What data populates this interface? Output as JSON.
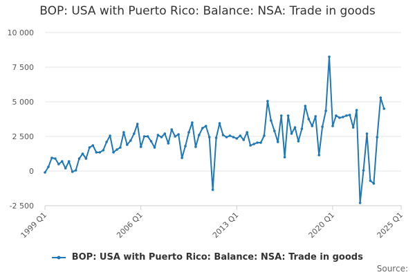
{
  "chart_data": {
    "type": "line",
    "title": "BOP: USA with Puerto Rico: Balance: NSA: Trade in goods",
    "xlabel": "",
    "ylabel": "",
    "ylim": [
      -2500,
      10000
    ],
    "y_ticks": [
      -2500,
      0,
      2500,
      5000,
      7500,
      10000
    ],
    "y_tick_labels": [
      "-2 500",
      "0",
      "2 500",
      "5 000",
      "7 500",
      "10 000"
    ],
    "x_ticks": [
      "1999 Q1",
      "2006 Q1",
      "2013 Q1",
      "2020 Q1",
      "2025 Q1"
    ],
    "grid": true,
    "legend_position": "bottom",
    "color": "#1f77b4",
    "series": [
      {
        "name": "BOP: USA with Puerto Rico: Balance: NSA: Trade in goods",
        "x_start": "1999 Q1",
        "frequency": "quarterly",
        "values": [
          -100,
          300,
          950,
          900,
          500,
          700,
          200,
          700,
          -50,
          50,
          900,
          1250,
          900,
          1700,
          1850,
          1350,
          1350,
          1500,
          2100,
          2550,
          1350,
          1550,
          1700,
          2800,
          1900,
          2200,
          2700,
          3400,
          1750,
          2500,
          2500,
          2150,
          1700,
          2600,
          2450,
          2700,
          2000,
          3000,
          2500,
          2650,
          950,
          1800,
          2800,
          3500,
          1750,
          2600,
          3100,
          3250,
          2450,
          -1350,
          2400,
          3450,
          2600,
          2450,
          2550,
          2450,
          2350,
          2550,
          2250,
          2800,
          1850,
          1950,
          2050,
          2050,
          2550,
          5050,
          3650,
          2900,
          2100,
          4000,
          1000,
          4000,
          2700,
          3150,
          2150,
          3050,
          4700,
          3750,
          3250,
          3950,
          1150,
          3200,
          4350,
          8250,
          3250,
          4000,
          3850,
          3900,
          4000,
          4050,
          3150,
          4400,
          -2300,
          50,
          2700,
          -700,
          -900,
          2450,
          5300,
          4500
        ]
      }
    ]
  },
  "source_label": "Source:"
}
